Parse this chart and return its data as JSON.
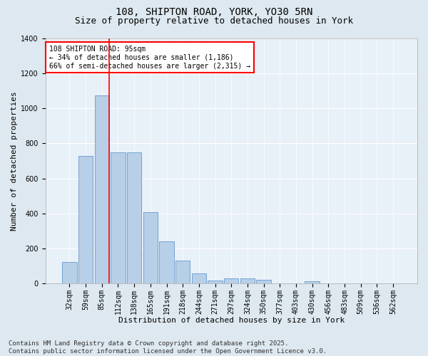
{
  "title1": "108, SHIPTON ROAD, YORK, YO30 5RN",
  "title2": "Size of property relative to detached houses in York",
  "xlabel": "Distribution of detached houses by size in York",
  "ylabel": "Number of detached properties",
  "categories": [
    "32sqm",
    "59sqm",
    "85sqm",
    "112sqm",
    "138sqm",
    "165sqm",
    "191sqm",
    "218sqm",
    "244sqm",
    "271sqm",
    "297sqm",
    "324sqm",
    "350sqm",
    "377sqm",
    "403sqm",
    "430sqm",
    "456sqm",
    "483sqm",
    "509sqm",
    "536sqm",
    "562sqm"
  ],
  "values": [
    120,
    730,
    1075,
    750,
    750,
    405,
    240,
    130,
    55,
    15,
    30,
    30,
    20,
    0,
    0,
    10,
    0,
    0,
    0,
    0,
    0
  ],
  "bar_color": "#b8cfe8",
  "bar_edge_color": "#6699cc",
  "vline_color": "red",
  "annotation_text": "108 SHIPTON ROAD: 95sqm\n← 34% of detached houses are smaller (1,186)\n66% of semi-detached houses are larger (2,315) →",
  "annotation_box_color": "white",
  "annotation_box_edge": "red",
  "ylim": [
    0,
    1400
  ],
  "yticks": [
    0,
    200,
    400,
    600,
    800,
    1000,
    1200,
    1400
  ],
  "bg_color": "#dde8f0",
  "plot_bg_color": "#e8f0f8",
  "footer": "Contains HM Land Registry data © Crown copyright and database right 2025.\nContains public sector information licensed under the Open Government Licence v3.0.",
  "title_fontsize": 10,
  "title2_fontsize": 9,
  "axis_label_fontsize": 8,
  "tick_fontsize": 7,
  "footer_fontsize": 6.5
}
